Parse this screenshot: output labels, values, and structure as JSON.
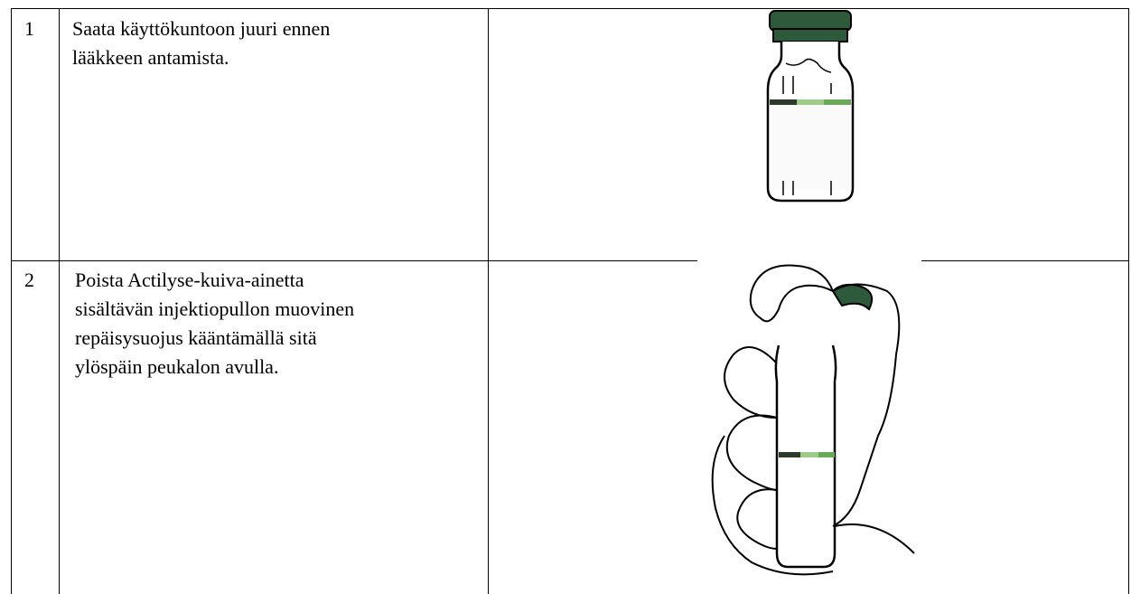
{
  "table": {
    "rows": [
      {
        "step": "1",
        "lines": [
          "Saata käyttökuntoon juuri ennen",
          "lääkkeen antamista."
        ]
      },
      {
        "step": "2",
        "lines": [
          "Poista Actilyse-kuiva-ainetta",
          "sisältävän injektiopullon  muovinen",
          "repäisysuojus kääntämällä sitä",
          "ylöspäin peukalon avulla."
        ]
      }
    ]
  }
}
